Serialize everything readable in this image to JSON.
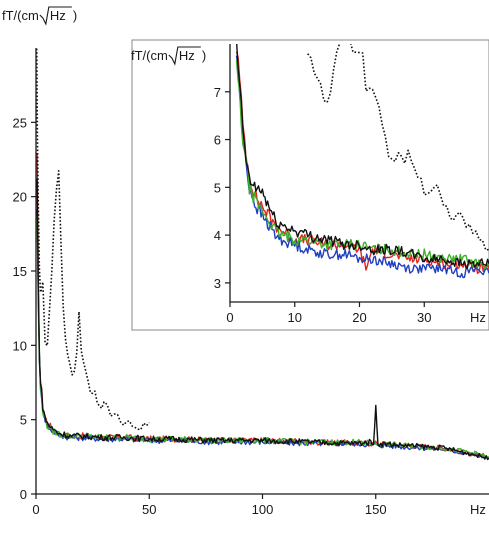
{
  "chart_data": [
    {
      "type": "line",
      "title": "",
      "ylabel": "fT/(cm√Hz)",
      "ylabel_parts": [
        "fT/(cm",
        "Hz",
        ")"
      ],
      "xunit": "Hz",
      "xlim": [
        0,
        200
      ],
      "ylim": [
        0,
        30
      ],
      "xticks": [
        0,
        50,
        100,
        150
      ],
      "xtick_labels": [
        "0",
        "50",
        "100",
        "150"
      ],
      "yticks": [
        0,
        5,
        10,
        15,
        20,
        25
      ],
      "ytick_labels": [
        "0",
        "5",
        "10",
        "15",
        "20",
        "25"
      ],
      "grid": false,
      "legend": "none",
      "series": [
        {
          "color": "#e8211c",
          "style": "solid",
          "x": [
            0.5,
            1,
            1.5,
            2,
            3,
            4,
            5,
            7,
            10,
            15,
            20,
            30,
            40,
            50,
            60,
            80,
            100,
            120,
            140,
            150,
            160,
            180,
            195,
            200
          ],
          "y": [
            22,
            14,
            9.8,
            7.6,
            6.0,
            5.2,
            4.8,
            4.4,
            4.1,
            3.9,
            3.9,
            3.8,
            3.8,
            3.7,
            3.7,
            3.6,
            3.6,
            3.5,
            3.4,
            3.4,
            3.3,
            3.1,
            2.6,
            2.4
          ]
        },
        {
          "color": "#1f3fbf",
          "style": "solid",
          "x": [
            0.5,
            1,
            1.5,
            2,
            3,
            4,
            5,
            7,
            10,
            15,
            20,
            30,
            40,
            50,
            60,
            80,
            100,
            120,
            140,
            150,
            160,
            180,
            195,
            200
          ],
          "y": [
            20,
            13,
            9.3,
            7.4,
            5.8,
            5.0,
            4.6,
            4.3,
            4.0,
            3.8,
            3.8,
            3.7,
            3.7,
            3.6,
            3.6,
            3.5,
            3.5,
            3.4,
            3.4,
            3.3,
            3.2,
            3.0,
            2.6,
            2.4
          ]
        },
        {
          "color": "#3fae2a",
          "style": "solid",
          "x": [
            0.5,
            1,
            1.5,
            2,
            3,
            4,
            5,
            7,
            10,
            15,
            20,
            30,
            40,
            50,
            60,
            80,
            100,
            120,
            140,
            150,
            160,
            180,
            195,
            200
          ],
          "y": [
            19,
            12.5,
            9.0,
            7.2,
            5.7,
            5.0,
            4.6,
            4.3,
            4.0,
            3.9,
            3.9,
            3.8,
            3.8,
            3.7,
            3.7,
            3.6,
            3.6,
            3.5,
            3.5,
            3.4,
            3.3,
            3.1,
            2.7,
            2.5
          ]
        },
        {
          "color": "#111111",
          "style": "solid",
          "x": [
            0.5,
            1,
            1.5,
            2,
            3,
            4,
            5,
            7,
            10,
            15,
            20,
            30,
            40,
            50,
            60,
            80,
            100,
            120,
            140,
            149,
            150,
            151,
            160,
            180,
            195,
            200
          ],
          "y": [
            21,
            13.5,
            9.6,
            7.5,
            5.9,
            5.1,
            4.8,
            4.4,
            4.1,
            3.9,
            3.9,
            3.8,
            3.8,
            3.7,
            3.7,
            3.6,
            3.6,
            3.5,
            3.4,
            3.5,
            5.7,
            3.4,
            3.3,
            3.1,
            2.6,
            2.4
          ]
        },
        {
          "color": "#111111",
          "style": "dotted",
          "x": [
            0.3,
            0.6,
            1,
            1.5,
            2,
            2.5,
            3,
            3.5,
            4,
            4.5,
            5,
            6,
            7,
            8,
            9,
            10,
            11,
            12,
            13,
            14,
            15,
            16,
            17,
            18,
            19,
            20,
            22,
            24,
            26,
            28,
            30,
            33,
            36,
            40,
            45,
            50
          ],
          "y": [
            29.5,
            24,
            19,
            16,
            14,
            13,
            13.5,
            12.5,
            10.5,
            9.5,
            10,
            12,
            15,
            17.5,
            21,
            23,
            18,
            12,
            10,
            9.5,
            9,
            8,
            8.5,
            9.5,
            12.5,
            10,
            8,
            7.2,
            6.8,
            6.2,
            6.0,
            5.5,
            5.1,
            4.8,
            4.4,
            4.8
          ]
        }
      ]
    },
    {
      "type": "line",
      "title": "",
      "ylabel": "fT/(cm√Hz)",
      "ylabel_parts": [
        "fT/(cm",
        "Hz",
        ")"
      ],
      "xunit": "Hz",
      "xlim": [
        0,
        40
      ],
      "ylim": [
        2.6,
        8
      ],
      "xticks": [
        0,
        10,
        20,
        30
      ],
      "xtick_labels": [
        "0",
        "10",
        "20",
        "30"
      ],
      "yticks": [
        3,
        4,
        5,
        6,
        7
      ],
      "ytick_labels": [
        "3",
        "4",
        "5",
        "6",
        "7"
      ],
      "grid": false,
      "legend": "none",
      "series": [
        {
          "color": "#e8211c",
          "style": "solid",
          "x": [
            1,
            1.5,
            2,
            2.5,
            3,
            4,
            5,
            6,
            7,
            8,
            10,
            12,
            15,
            18,
            20,
            21,
            22,
            25,
            28,
            30,
            33,
            36,
            38,
            40
          ],
          "y": [
            8,
            7.2,
            6.3,
            5.7,
            5.2,
            4.8,
            4.6,
            4.4,
            4.2,
            4.1,
            3.9,
            3.9,
            3.8,
            3.8,
            3.7,
            3.3,
            3.7,
            3.6,
            3.5,
            3.5,
            3.4,
            3.4,
            3.3,
            3.3
          ]
        },
        {
          "color": "#1f3fbf",
          "style": "solid",
          "x": [
            1,
            1.5,
            2,
            2.5,
            3,
            4,
            5,
            6,
            7,
            8,
            10,
            12,
            15,
            18,
            20,
            22,
            25,
            28,
            30,
            33,
            36,
            38,
            40
          ],
          "y": [
            7.8,
            7.0,
            6.1,
            5.5,
            5.0,
            4.6,
            4.4,
            4.2,
            4.0,
            3.9,
            3.8,
            3.7,
            3.6,
            3.6,
            3.5,
            3.5,
            3.4,
            3.3,
            3.3,
            3.3,
            3.2,
            3.3,
            3.2
          ]
        },
        {
          "color": "#3fae2a",
          "style": "solid",
          "x": [
            1,
            1.5,
            2,
            2.5,
            3,
            4,
            5,
            6,
            7,
            8,
            10,
            12,
            15,
            18,
            20,
            22,
            25,
            28,
            30,
            33,
            36,
            38,
            40
          ],
          "y": [
            7.6,
            6.8,
            6.0,
            5.5,
            5.0,
            4.7,
            4.5,
            4.3,
            4.1,
            4.0,
            3.9,
            3.9,
            3.8,
            3.8,
            3.8,
            3.7,
            3.7,
            3.6,
            3.6,
            3.5,
            3.5,
            3.4,
            3.4
          ]
        },
        {
          "color": "#111111",
          "style": "solid",
          "x": [
            1,
            1.5,
            2,
            2.5,
            3,
            4,
            5,
            6,
            7,
            8,
            10,
            12,
            15,
            18,
            20,
            22,
            25,
            28,
            30,
            33,
            36,
            38,
            40
          ],
          "y": [
            7.9,
            7.1,
            6.2,
            5.6,
            5.1,
            5.0,
            4.9,
            4.6,
            4.3,
            4.2,
            4.1,
            4.0,
            3.9,
            3.8,
            3.8,
            3.7,
            3.7,
            3.6,
            3.5,
            3.5,
            3.4,
            3.4,
            3.4
          ]
        },
        {
          "color": "#111111",
          "style": "dotted",
          "x": [
            12,
            13,
            14,
            15,
            16,
            17,
            18,
            19,
            20,
            21,
            22,
            23,
            24,
            25,
            26,
            27,
            28,
            29,
            30,
            31,
            32,
            33,
            34,
            35,
            36,
            37,
            38,
            39,
            40
          ],
          "y": [
            8,
            7.5,
            7.0,
            6.7,
            7.3,
            8,
            8,
            8,
            8,
            7.2,
            7.0,
            6.5,
            6.0,
            5.6,
            5.8,
            5.5,
            5.7,
            5.2,
            5.0,
            4.8,
            4.9,
            4.6,
            4.5,
            4.3,
            4.4,
            4.1,
            4.0,
            3.8,
            3.7
          ]
        }
      ]
    }
  ]
}
